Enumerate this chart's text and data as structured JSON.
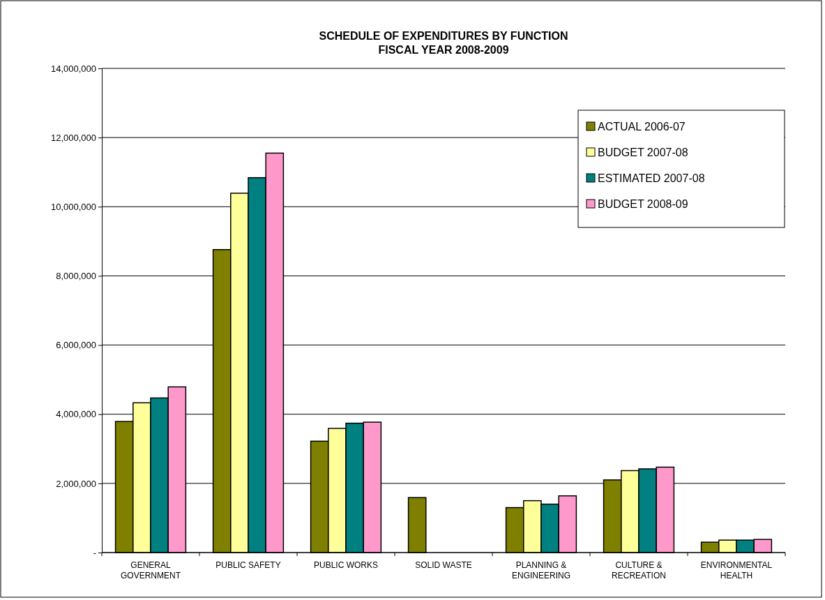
{
  "chart_data": {
    "type": "bar",
    "title": "SCHEDULE OF EXPENDITURES BY FUNCTION\nFISCAL YEAR 2008-2009",
    "categories": [
      "GENERAL\nGOVERNMENT",
      "PUBLIC SAFETY",
      "PUBLIC WORKS",
      "SOLID WASTE",
      "PLANNING &\nENGINEERING",
      "CULTURE &\nRECREATION",
      "ENVIRONMENTAL\nHEALTH"
    ],
    "series": [
      {
        "name": "ACTUAL 2006-07",
        "color": "#808000",
        "values": [
          3790000,
          8760000,
          3220000,
          1590000,
          1300000,
          2100000,
          300000
        ]
      },
      {
        "name": "BUDGET 2007-08",
        "color": "#ffff99",
        "values": [
          4330000,
          10390000,
          3590000,
          null,
          1500000,
          2370000,
          360000
        ]
      },
      {
        "name": "ESTIMATED 2007-08",
        "color": "#008080",
        "values": [
          4470000,
          10840000,
          3740000,
          null,
          1400000,
          2420000,
          360000
        ]
      },
      {
        "name": "BUDGET 2008-09",
        "color": "#ff99cc",
        "values": [
          4790000,
          11550000,
          3770000,
          null,
          1640000,
          2470000,
          380000
        ]
      }
    ],
    "ylim": [
      0,
      14000000
    ],
    "yticks": [
      {
        "value": 0,
        "label": "-"
      },
      {
        "value": 2000000,
        "label": "2,000,000"
      },
      {
        "value": 4000000,
        "label": "4,000,000"
      },
      {
        "value": 6000000,
        "label": "6,000,000"
      },
      {
        "value": 8000000,
        "label": "8,000,000"
      },
      {
        "value": 10000000,
        "label": "10,000,000"
      },
      {
        "value": 12000000,
        "label": "12,000,000"
      },
      {
        "value": 14000000,
        "label": "14,000,000"
      }
    ],
    "grid": "y",
    "legend": "top right"
  }
}
